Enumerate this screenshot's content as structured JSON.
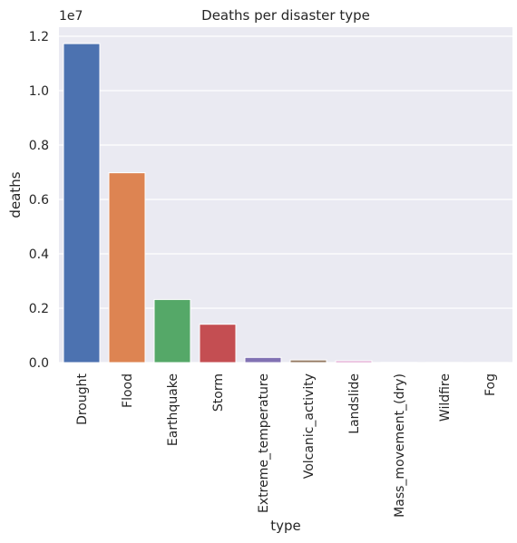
{
  "chart_data": {
    "type": "bar",
    "title": "Deaths per disaster type",
    "xlabel": "type",
    "ylabel": "deaths",
    "offset_label": "1e7",
    "categories": [
      "Drought",
      "Flood",
      "Earthquake",
      "Storm",
      "Extreme_temperature",
      "Volcanic_activity",
      "Landslide",
      "Mass_movement_(dry)",
      "Wildfire",
      "Fog"
    ],
    "values": [
      11730000,
      6980000,
      2320000,
      1410000,
      190000,
      96000,
      65000,
      5000,
      4000,
      4000
    ],
    "colors": [
      "#4c72b0",
      "#dd8452",
      "#55a868",
      "#c44e52",
      "#8172b3",
      "#937860",
      "#da8bc3",
      "#8c8c8c",
      "#ccb974",
      "#64b5cd"
    ],
    "ylim": [
      0,
      12000000
    ],
    "yticks": [
      0,
      2000000,
      4000000,
      6000000,
      8000000,
      10000000,
      12000000
    ],
    "ytick_labels": [
      "0.0",
      "0.2",
      "0.4",
      "0.6",
      "0.8",
      "1.0",
      "1.2"
    ],
    "grid": true,
    "legend": "none",
    "background": "#eaeaf2"
  }
}
